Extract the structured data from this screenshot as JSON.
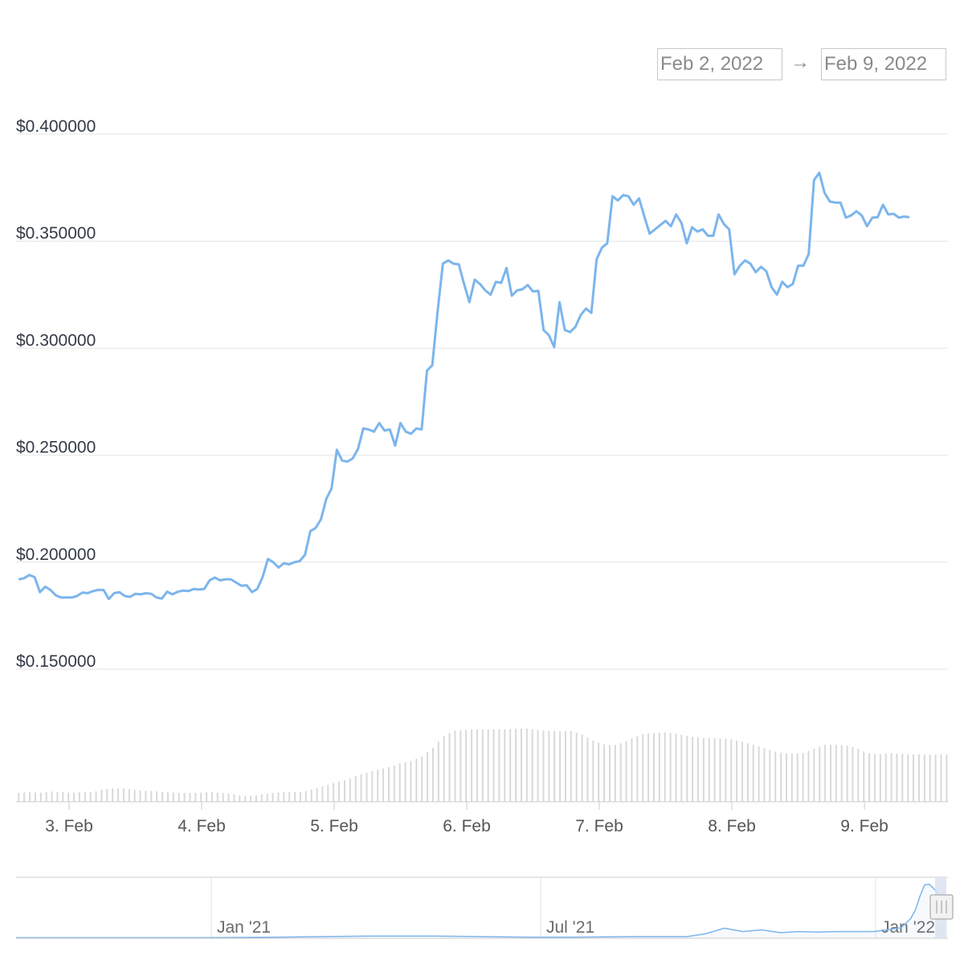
{
  "range_selector": {
    "from": "Feb 2, 2022",
    "arrow": "→",
    "to": "Feb 9, 2022"
  },
  "colors": {
    "line": "#7cb5ec",
    "grid": "#e6e6e6",
    "volume": "#d9d9d9",
    "navigator_mask": "#dbe2f0"
  },
  "chart_data": {
    "type": "line",
    "y_ticks": [
      "$0.400000",
      "$0.350000",
      "$0.300000",
      "$0.250000",
      "$0.200000",
      "$0.150000"
    ],
    "ylim": [
      0.15,
      0.4
    ],
    "x_ticks": [
      "3. Feb",
      "4. Feb",
      "5. Feb",
      "6. Feb",
      "7. Feb",
      "8. Feb",
      "9. Feb"
    ],
    "x_range_days": [
      2.6,
      9.63
    ],
    "grid": true,
    "price_series": [
      [
        2.62,
        0.192
      ],
      [
        2.66,
        0.1925
      ],
      [
        2.7,
        0.194
      ],
      [
        2.74,
        0.193
      ],
      [
        2.78,
        0.186
      ],
      [
        2.82,
        0.1885
      ],
      [
        2.86,
        0.187
      ],
      [
        2.9,
        0.1845
      ],
      [
        2.94,
        0.1835
      ],
      [
        2.98,
        0.1835
      ],
      [
        3.02,
        0.1835
      ],
      [
        3.06,
        0.1842
      ],
      [
        3.1,
        0.1858
      ],
      [
        3.14,
        0.1855
      ],
      [
        3.18,
        0.1865
      ],
      [
        3.22,
        0.187
      ],
      [
        3.26,
        0.187
      ],
      [
        3.3,
        0.1828
      ],
      [
        3.34,
        0.1855
      ],
      [
        3.38,
        0.186
      ],
      [
        3.42,
        0.1842
      ],
      [
        3.46,
        0.1838
      ],
      [
        3.5,
        0.1852
      ],
      [
        3.54,
        0.185
      ],
      [
        3.58,
        0.1855
      ],
      [
        3.62,
        0.1852
      ],
      [
        3.66,
        0.1835
      ],
      [
        3.7,
        0.183
      ],
      [
        3.74,
        0.1862
      ],
      [
        3.78,
        0.185
      ],
      [
        3.82,
        0.1862
      ],
      [
        3.86,
        0.1867
      ],
      [
        3.9,
        0.1865
      ],
      [
        3.94,
        0.1875
      ],
      [
        3.98,
        0.1872
      ],
      [
        4.02,
        0.1875
      ],
      [
        4.06,
        0.1915
      ],
      [
        4.1,
        0.1928
      ],
      [
        4.14,
        0.1915
      ],
      [
        4.18,
        0.192
      ],
      [
        4.22,
        0.192
      ],
      [
        4.26,
        0.1905
      ],
      [
        4.3,
        0.189
      ],
      [
        4.34,
        0.1892
      ],
      [
        4.38,
        0.186
      ],
      [
        4.42,
        0.1875
      ],
      [
        4.46,
        0.193
      ],
      [
        4.5,
        0.2015
      ],
      [
        4.54,
        0.2
      ],
      [
        4.58,
        0.1975
      ],
      [
        4.62,
        0.1995
      ],
      [
        4.66,
        0.199
      ],
      [
        4.7,
        0.2
      ],
      [
        4.74,
        0.2005
      ],
      [
        4.78,
        0.2035
      ],
      [
        4.82,
        0.2145
      ],
      [
        4.86,
        0.216
      ],
      [
        4.9,
        0.22
      ],
      [
        4.94,
        0.2295
      ],
      [
        4.98,
        0.2345
      ],
      [
        5.02,
        0.2525
      ],
      [
        5.06,
        0.2475
      ],
      [
        5.1,
        0.247
      ],
      [
        5.14,
        0.2485
      ],
      [
        5.18,
        0.253
      ],
      [
        5.22,
        0.2625
      ],
      [
        5.26,
        0.262
      ],
      [
        5.3,
        0.261
      ],
      [
        5.34,
        0.265
      ],
      [
        5.38,
        0.2615
      ],
      [
        5.42,
        0.262
      ],
      [
        5.46,
        0.2545
      ],
      [
        5.5,
        0.265
      ],
      [
        5.54,
        0.261
      ],
      [
        5.58,
        0.26
      ],
      [
        5.62,
        0.2625
      ],
      [
        5.66,
        0.262
      ],
      [
        5.7,
        0.2895
      ],
      [
        5.74,
        0.292
      ],
      [
        5.78,
        0.317
      ],
      [
        5.82,
        0.3395
      ],
      [
        5.86,
        0.341
      ],
      [
        5.9,
        0.3395
      ],
      [
        5.94,
        0.3392
      ],
      [
        5.98,
        0.33
      ],
      [
        6.02,
        0.3215
      ],
      [
        6.06,
        0.332
      ],
      [
        6.1,
        0.33
      ],
      [
        6.14,
        0.327
      ],
      [
        6.18,
        0.325
      ],
      [
        6.22,
        0.331
      ],
      [
        6.26,
        0.3305
      ],
      [
        6.3,
        0.3375
      ],
      [
        6.34,
        0.3245
      ],
      [
        6.38,
        0.327
      ],
      [
        6.42,
        0.3275
      ],
      [
        6.46,
        0.3295
      ],
      [
        6.5,
        0.3265
      ],
      [
        6.54,
        0.3268
      ],
      [
        6.58,
        0.3085
      ],
      [
        6.62,
        0.306
      ],
      [
        6.66,
        0.3005
      ],
      [
        6.7,
        0.3215
      ],
      [
        6.74,
        0.3085
      ],
      [
        6.78,
        0.3075
      ],
      [
        6.82,
        0.31
      ],
      [
        6.86,
        0.3155
      ],
      [
        6.9,
        0.3185
      ],
      [
        6.94,
        0.3165
      ],
      [
        6.98,
        0.3415
      ],
      [
        7.02,
        0.347
      ],
      [
        7.06,
        0.349
      ],
      [
        7.1,
        0.371
      ],
      [
        7.14,
        0.369
      ],
      [
        7.18,
        0.3715
      ],
      [
        7.22,
        0.371
      ],
      [
        7.26,
        0.367
      ],
      [
        7.3,
        0.37
      ],
      [
        7.34,
        0.3615
      ],
      [
        7.38,
        0.3535
      ],
      [
        7.42,
        0.3555
      ],
      [
        7.46,
        0.3575
      ],
      [
        7.5,
        0.3595
      ],
      [
        7.54,
        0.357
      ],
      [
        7.58,
        0.3625
      ],
      [
        7.62,
        0.3585
      ],
      [
        7.66,
        0.349
      ],
      [
        7.7,
        0.3565
      ],
      [
        7.74,
        0.3545
      ],
      [
        7.78,
        0.3555
      ],
      [
        7.82,
        0.3525
      ],
      [
        7.86,
        0.3525
      ],
      [
        7.9,
        0.3625
      ],
      [
        7.94,
        0.358
      ],
      [
        7.98,
        0.3555
      ],
      [
        8.02,
        0.3345
      ],
      [
        8.06,
        0.3385
      ],
      [
        8.1,
        0.341
      ],
      [
        8.14,
        0.3395
      ],
      [
        8.18,
        0.3355
      ],
      [
        8.22,
        0.338
      ],
      [
        8.26,
        0.336
      ],
      [
        8.3,
        0.3285
      ],
      [
        8.34,
        0.325
      ],
      [
        8.38,
        0.331
      ],
      [
        8.42,
        0.3285
      ],
      [
        8.46,
        0.33
      ],
      [
        8.5,
        0.3385
      ],
      [
        8.54,
        0.3385
      ],
      [
        8.58,
        0.344
      ],
      [
        8.62,
        0.3785
      ],
      [
        8.66,
        0.382
      ],
      [
        8.7,
        0.3725
      ],
      [
        8.74,
        0.3685
      ],
      [
        8.78,
        0.368
      ],
      [
        8.82,
        0.368
      ],
      [
        8.86,
        0.361
      ],
      [
        8.9,
        0.362
      ],
      [
        8.94,
        0.364
      ],
      [
        8.98,
        0.362
      ],
      [
        9.02,
        0.357
      ],
      [
        9.06,
        0.361
      ],
      [
        9.1,
        0.3612
      ],
      [
        9.14,
        0.367
      ],
      [
        9.18,
        0.3625
      ],
      [
        9.22,
        0.3628
      ],
      [
        9.26,
        0.361
      ],
      [
        9.3,
        0.3615
      ],
      [
        9.34,
        0.3612
      ]
    ],
    "volume_relative": [
      [
        2.62,
        0.12
      ],
      [
        2.7,
        0.13
      ],
      [
        2.78,
        0.12
      ],
      [
        2.86,
        0.14
      ],
      [
        2.94,
        0.13
      ],
      [
        3.02,
        0.12
      ],
      [
        3.1,
        0.13
      ],
      [
        3.18,
        0.13
      ],
      [
        3.26,
        0.17
      ],
      [
        3.34,
        0.18
      ],
      [
        3.42,
        0.18
      ],
      [
        3.5,
        0.16
      ],
      [
        3.58,
        0.15
      ],
      [
        3.66,
        0.14
      ],
      [
        3.74,
        0.13
      ],
      [
        3.82,
        0.12
      ],
      [
        3.9,
        0.12
      ],
      [
        3.98,
        0.12
      ],
      [
        4.06,
        0.13
      ],
      [
        4.14,
        0.12
      ],
      [
        4.22,
        0.11
      ],
      [
        4.3,
        0.08
      ],
      [
        4.38,
        0.08
      ],
      [
        4.46,
        0.1
      ],
      [
        4.54,
        0.12
      ],
      [
        4.62,
        0.13
      ],
      [
        4.7,
        0.13
      ],
      [
        4.78,
        0.14
      ],
      [
        4.86,
        0.18
      ],
      [
        4.94,
        0.22
      ],
      [
        5.02,
        0.27
      ],
      [
        5.1,
        0.3
      ],
      [
        5.18,
        0.36
      ],
      [
        5.26,
        0.4
      ],
      [
        5.34,
        0.44
      ],
      [
        5.42,
        0.47
      ],
      [
        5.5,
        0.52
      ],
      [
        5.58,
        0.55
      ],
      [
        5.66,
        0.61
      ],
      [
        5.74,
        0.72
      ],
      [
        5.82,
        0.88
      ],
      [
        5.9,
        0.96
      ],
      [
        5.98,
        0.97
      ],
      [
        6.06,
        0.98
      ],
      [
        6.14,
        0.98
      ],
      [
        6.22,
        0.98
      ],
      [
        6.3,
        0.98
      ],
      [
        6.38,
        0.99
      ],
      [
        6.46,
        0.99
      ],
      [
        6.54,
        0.97
      ],
      [
        6.62,
        0.96
      ],
      [
        6.7,
        0.95
      ],
      [
        6.78,
        0.96
      ],
      [
        6.86,
        0.92
      ],
      [
        6.94,
        0.84
      ],
      [
        7.02,
        0.78
      ],
      [
        7.1,
        0.76
      ],
      [
        7.18,
        0.8
      ],
      [
        7.26,
        0.87
      ],
      [
        7.34,
        0.92
      ],
      [
        7.42,
        0.93
      ],
      [
        7.5,
        0.94
      ],
      [
        7.58,
        0.92
      ],
      [
        7.66,
        0.89
      ],
      [
        7.74,
        0.87
      ],
      [
        7.82,
        0.86
      ],
      [
        7.9,
        0.86
      ],
      [
        7.98,
        0.85
      ],
      [
        8.06,
        0.82
      ],
      [
        8.14,
        0.78
      ],
      [
        8.22,
        0.74
      ],
      [
        8.3,
        0.69
      ],
      [
        8.38,
        0.66
      ],
      [
        8.46,
        0.65
      ],
      [
        8.54,
        0.66
      ],
      [
        8.62,
        0.72
      ],
      [
        8.7,
        0.77
      ],
      [
        8.78,
        0.77
      ],
      [
        8.86,
        0.76
      ],
      [
        8.94,
        0.73
      ],
      [
        9.02,
        0.66
      ],
      [
        9.1,
        0.64
      ],
      [
        9.18,
        0.66
      ],
      [
        9.26,
        0.65
      ],
      [
        9.34,
        0.64
      ]
    ],
    "navigator": {
      "labels": [
        "Jan '21",
        "Jul '21",
        "Jan '22"
      ],
      "series_relative": [
        [
          0.0,
          0.01
        ],
        [
          0.1,
          0.01
        ],
        [
          0.2,
          0.01
        ],
        [
          0.28,
          0.02
        ],
        [
          0.33,
          0.03
        ],
        [
          0.38,
          0.04
        ],
        [
          0.45,
          0.04
        ],
        [
          0.5,
          0.03
        ],
        [
          0.55,
          0.02
        ],
        [
          0.6,
          0.02
        ],
        [
          0.66,
          0.03
        ],
        [
          0.72,
          0.03
        ],
        [
          0.74,
          0.08
        ],
        [
          0.76,
          0.18
        ],
        [
          0.78,
          0.12
        ],
        [
          0.8,
          0.15
        ],
        [
          0.82,
          0.1
        ],
        [
          0.84,
          0.12
        ],
        [
          0.86,
          0.11
        ],
        [
          0.88,
          0.12
        ],
        [
          0.9,
          0.12
        ],
        [
          0.92,
          0.12
        ],
        [
          0.93,
          0.14
        ],
        [
          0.95,
          0.19
        ],
        [
          0.96,
          0.35
        ],
        [
          0.965,
          0.5
        ],
        [
          0.97,
          0.75
        ],
        [
          0.975,
          0.95
        ],
        [
          0.98,
          0.96
        ],
        [
          0.985,
          0.88
        ],
        [
          0.99,
          0.78
        ],
        [
          0.995,
          0.72
        ],
        [
          1.0,
          0.6
        ]
      ]
    }
  }
}
